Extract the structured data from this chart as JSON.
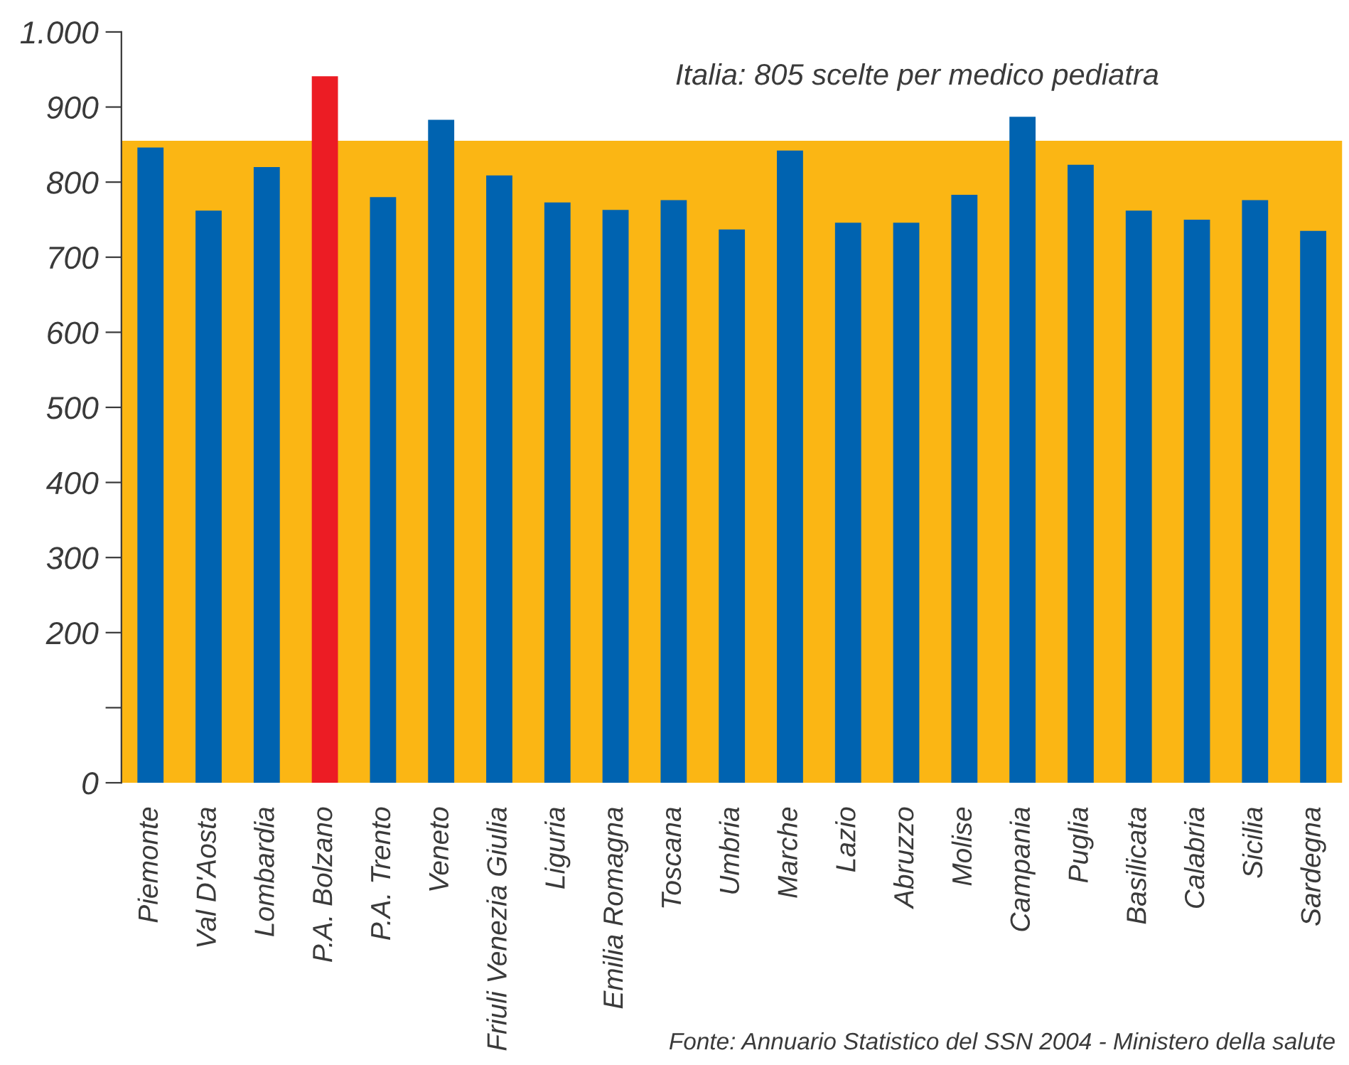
{
  "chart_data": {
    "type": "bar",
    "categories": [
      "Piemonte",
      "Val D'Aosta",
      "Lombardia",
      "P.A. Bolzano",
      "P.A. Trento",
      "Veneto",
      "Friuli Venezia Giulia",
      "Liguria",
      "Emilia Romagna",
      "Toscana",
      "Umbria",
      "Marche",
      "Lazio",
      "Abruzzo",
      "Molise",
      "Campania",
      "Puglia",
      "Basilicata",
      "Calabria",
      "Sicilia",
      "Sardegna"
    ],
    "values": [
      846,
      762,
      820,
      941,
      780,
      883,
      809,
      773,
      763,
      776,
      737,
      842,
      746,
      746,
      783,
      887,
      823,
      762,
      750,
      776,
      735
    ],
    "colors": [
      "#0063b0",
      "#0063b0",
      "#0063b0",
      "#ec1c24",
      "#0063b0",
      "#0063b0",
      "#0063b0",
      "#0063b0",
      "#0063b0",
      "#0063b0",
      "#0063b0",
      "#0063b0",
      "#0063b0",
      "#0063b0",
      "#0063b0",
      "#0063b0",
      "#0063b0",
      "#0063b0",
      "#0063b0",
      "#0063b0",
      "#0063b0"
    ],
    "ylim": [
      0,
      1000
    ],
    "yticks": [
      {
        "value": 0,
        "label": "0"
      },
      {
        "value": 100,
        "label": null
      },
      200,
      300,
      400,
      500,
      600,
      700,
      800,
      900,
      {
        "value": 1000,
        "label": "1.000"
      }
    ],
    "bands": [
      {
        "axis": "y",
        "from": 0,
        "to": 855,
        "color": "#fbb614"
      }
    ],
    "annotations": [
      "Italia: 805 scelte per medico pediatra",
      "Fonte: Annuario Statistico del SSN 2004 - Ministero della salute"
    ],
    "grid": false,
    "legend": false
  }
}
